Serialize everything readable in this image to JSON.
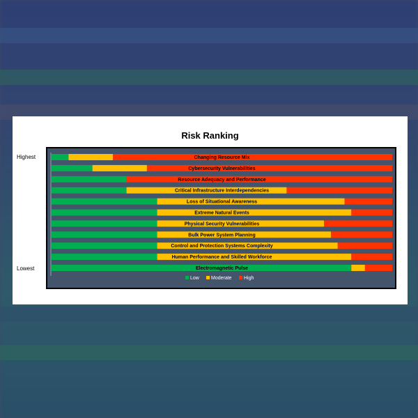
{
  "colors": {
    "low": "#00b050",
    "moderate": "#ffc000",
    "high": "#ff3300"
  },
  "chart_data": {
    "type": "bar",
    "orientation": "horizontal",
    "stacked": true,
    "title": "Risk Ranking",
    "top_label": "Highest",
    "bottom_label": "Lowest",
    "legend_position": "bottom",
    "categories": [
      "Changing Resource Mix",
      "Cybersecurity Vulnerabilities",
      "Resource Adequacy and Performance",
      "Critical Infrastructure  Interdependencies",
      "Loss of Situational  Awareness",
      "Extreme Natural  Events",
      "Physical Security Vulnerabilities",
      "Bulk Power System Planning",
      "Control and Protection Systems Complexity",
      "Human Performance and Skilled Workforce",
      "Electromagnetic Pulse"
    ],
    "series": [
      {
        "name": "Low",
        "values": [
          5,
          12,
          22,
          22,
          31,
          31,
          31,
          31,
          31,
          31,
          88
        ]
      },
      {
        "name": "Moderate",
        "values": [
          13,
          16,
          0,
          47,
          55,
          57,
          49,
          51,
          53,
          57,
          4
        ]
      },
      {
        "name": "High",
        "values": [
          82,
          72,
          78,
          31,
          14,
          12,
          20,
          18,
          16,
          12,
          8
        ]
      }
    ],
    "xlim": [
      0,
      100
    ]
  }
}
